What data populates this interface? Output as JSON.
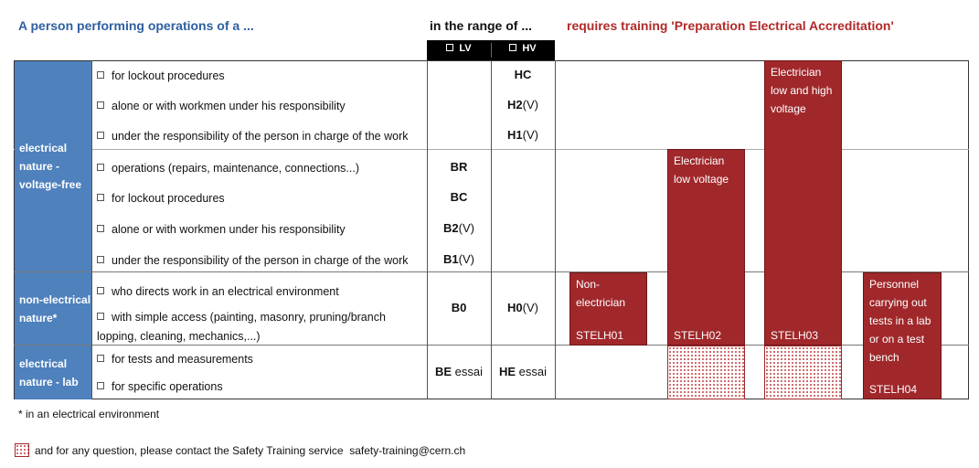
{
  "header": {
    "left": "A person performing operations of a ...",
    "range": "in the range of ...",
    "training": "requires training 'Preparation Electrical Accreditation'"
  },
  "range_columns": [
    "LV",
    "HV"
  ],
  "groups": [
    {
      "label": "electrical nature - voltage-free",
      "items": [
        {
          "text": "for lockout procedures",
          "hv": {
            "code": "HC"
          }
        },
        {
          "text": "alone or with workmen under his responsibility",
          "hv": {
            "code": "H2",
            "suffix": "(V)"
          }
        },
        {
          "text": "under the responsibility of the person in charge of the work",
          "hv": {
            "code": "H1",
            "suffix": "(V)"
          }
        },
        {
          "text": "operations (repairs, maintenance, connections...)",
          "lv": {
            "code": "BR"
          }
        },
        {
          "text": "for lockout procedures",
          "lv": {
            "code": "BC"
          }
        },
        {
          "text": "alone or with workmen under his responsibility",
          "lv": {
            "code": "B2",
            "suffix": "(V)"
          }
        },
        {
          "text": "under the responsibility of the person in charge of the work",
          "lv": {
            "code": "B1",
            "suffix": "(V)"
          }
        }
      ]
    },
    {
      "label": "non-electrical nature*",
      "items": [
        {
          "text": "who directs work in an electrical environment"
        },
        {
          "text": "with simple access (painting, masonry, pruning/branch lopping, cleaning, mechanics,...)"
        }
      ],
      "lv": {
        "code": "B0"
      },
      "hv": {
        "code": "H0",
        "suffix": "(V)"
      }
    },
    {
      "label": "electrical nature - lab",
      "items": [
        {
          "text": "for tests and measurements"
        },
        {
          "text": "for specific operations"
        }
      ],
      "lv": {
        "code": "BE",
        "suffix": "essai"
      },
      "hv": {
        "code": "HE",
        "suffix": "essai"
      }
    }
  ],
  "trainings": [
    {
      "label": "Non-electrician",
      "code": "STELH01"
    },
    {
      "label": "Electrician low voltage",
      "code": "STELH02"
    },
    {
      "label": "Electrician low and high voltage",
      "code": "STELH03"
    },
    {
      "label": "Personnel carrying out tests in a lab or on a test bench",
      "code": "STELH04"
    }
  ],
  "footnote": "* in an electrical environment",
  "contact": {
    "text": "and for any question, please contact the Safety Training service",
    "email": "safety-training@cern.ch"
  }
}
